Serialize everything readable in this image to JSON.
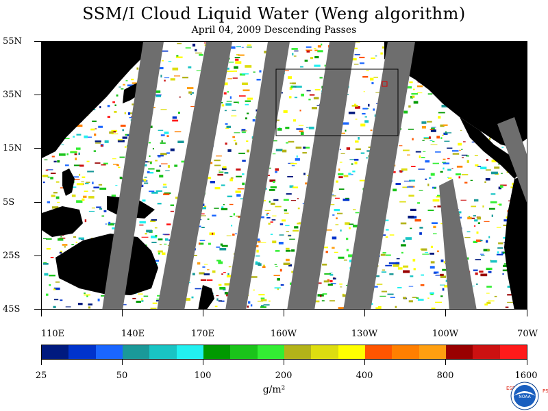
{
  "title": "SSM/I Cloud Liquid Water (Weng algorithm)",
  "subtitle": "April 04, 2009  Descending Passes",
  "latitude_labels": [
    "55N",
    "35N",
    "15N",
    "5S",
    "25S",
    "45S"
  ],
  "longitude_labels": [
    "110E",
    "140E",
    "170E",
    "160W",
    "130W",
    "100W",
    "70W"
  ],
  "colorbar": {
    "colors": [
      "#001a7f",
      "#0033cc",
      "#1a66ff",
      "#1a9999",
      "#19c4c4",
      "#22f0f0",
      "#009900",
      "#1ac41a",
      "#33ee33",
      "#b3b319",
      "#dddd10",
      "#ffff00",
      "#ff5500",
      "#ff7f00",
      "#ff9f10",
      "#990000",
      "#cc1111",
      "#ff1a1a"
    ],
    "tick_labels": [
      "25",
      "50",
      "100",
      "200",
      "400",
      "800",
      "1600"
    ],
    "units": "g/m²"
  },
  "map": {
    "land_color": "#000000",
    "no_data_color": "#6e6e6e",
    "ocean_clear_color": "#ffffff"
  },
  "logo": {
    "left_letters": "ESRL",
    "right_letters": "PSD",
    "center_text": "NOAA"
  }
}
